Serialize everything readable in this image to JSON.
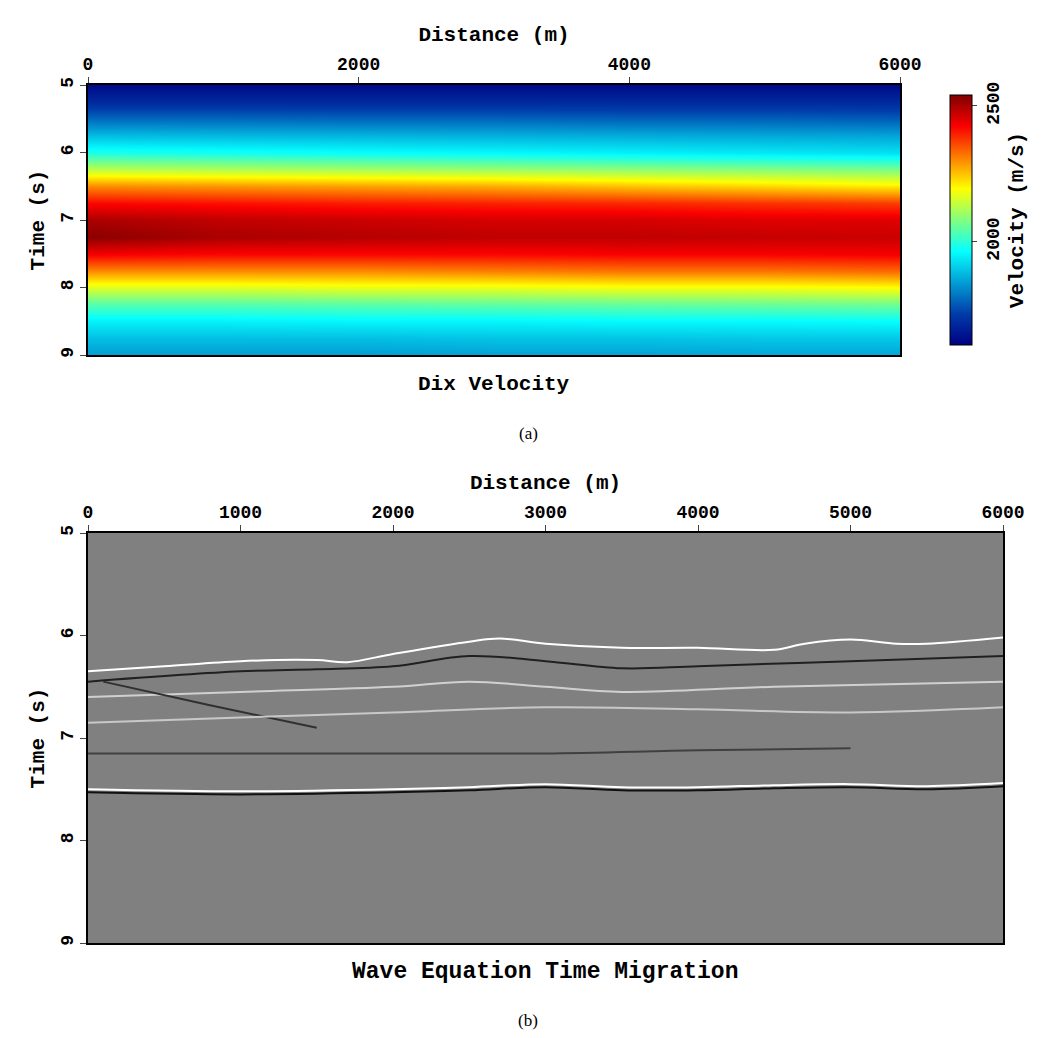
{
  "chart_data": [
    {
      "type": "heatmap",
      "title": "Dix Velocity",
      "label": "(a)",
      "x_label": "Distance (m)",
      "y_label": "Time (s)",
      "x": [
        0,
        1000,
        2000,
        3000,
        4000,
        5000,
        6000
      ],
      "y": [
        5.0,
        5.25,
        5.5,
        5.75,
        6.0,
        6.25,
        6.5,
        6.75,
        7.0,
        7.25,
        7.5,
        7.75,
        8.0,
        8.25,
        8.5,
        8.75,
        9.0
      ],
      "cells": [
        [
          1640,
          1640,
          1640,
          1640,
          1640,
          1640,
          1640
        ],
        [
          1700,
          1700,
          1700,
          1700,
          1700,
          1700,
          1700
        ],
        [
          1790,
          1790,
          1785,
          1785,
          1780,
          1780,
          1775
        ],
        [
          1890,
          1885,
          1880,
          1875,
          1870,
          1865,
          1860
        ],
        [
          1990,
          1980,
          1970,
          1960,
          1950,
          1940,
          1930
        ],
        [
          2130,
          2120,
          2110,
          2100,
          2090,
          2080,
          2070
        ],
        [
          2300,
          2290,
          2280,
          2270,
          2250,
          2230,
          2210
        ],
        [
          2420,
          2410,
          2400,
          2395,
          2390,
          2380,
          2370
        ],
        [
          2500,
          2480,
          2470,
          2460,
          2460,
          2450,
          2450
        ],
        [
          2530,
          2500,
          2490,
          2480,
          2480,
          2475,
          2470
        ],
        [
          2430,
          2420,
          2420,
          2420,
          2425,
          2425,
          2430
        ],
        [
          2300,
          2300,
          2300,
          2310,
          2320,
          2320,
          2330
        ],
        [
          2160,
          2160,
          2170,
          2170,
          2180,
          2180,
          2190
        ],
        [
          2040,
          2040,
          2045,
          2050,
          2055,
          2060,
          2065
        ],
        [
          1950,
          1950,
          1955,
          1955,
          1960,
          1960,
          1965
        ],
        [
          1890,
          1890,
          1890,
          1895,
          1895,
          1900,
          1900
        ],
        [
          1850,
          1850,
          1850,
          1855,
          1855,
          1860,
          1860
        ]
      ],
      "xlim": [
        0,
        6000
      ],
      "xticks": [
        0,
        2000,
        4000,
        6000
      ],
      "ylim": [
        9,
        5
      ],
      "yticks": [
        5,
        6,
        7,
        8,
        9
      ],
      "grid": false,
      "colorbar": {
        "title": "Velocity (m/s)",
        "range": [
          1620,
          2540
        ],
        "ticks": [
          2000,
          2500
        ]
      }
    },
    {
      "type": "line",
      "title": "Wave Equation Time Migration",
      "label": "(b)",
      "x_label": "Distance (m)",
      "y_label": "Time (s)",
      "xlim": [
        0,
        6000
      ],
      "xticks": [
        0,
        1000,
        2000,
        3000,
        4000,
        5000,
        6000
      ],
      "ylim": [
        9,
        5
      ],
      "yticks": [
        5,
        6,
        7,
        8,
        9
      ],
      "grid": false,
      "series": [
        {
          "color": "#ffffff",
          "x": [
            0,
            500,
            1000,
            1500,
            1700,
            2000,
            2500,
            2700,
            3000,
            3500,
            4000,
            4500,
            4700,
            5000,
            5300,
            5500,
            6000
          ],
          "values": [
            6.35,
            6.3,
            6.25,
            6.24,
            6.26,
            6.18,
            6.06,
            6.03,
            6.08,
            6.12,
            6.12,
            6.14,
            6.08,
            6.04,
            6.08,
            6.08,
            6.02
          ]
        },
        {
          "color": "#202020",
          "x": [
            0,
            1000,
            1500,
            2000,
            2500,
            3000,
            3500,
            4000,
            5000,
            6000
          ],
          "values": [
            6.45,
            6.35,
            6.33,
            6.3,
            6.2,
            6.25,
            6.32,
            6.3,
            6.25,
            6.2
          ]
        },
        {
          "color": "#d0d0d0",
          "x": [
            0,
            1000,
            2000,
            2500,
            3000,
            3500,
            4500,
            6000
          ],
          "values": [
            6.6,
            6.55,
            6.5,
            6.45,
            6.5,
            6.55,
            6.5,
            6.45
          ]
        },
        {
          "color": "#303030",
          "x": [
            100,
            800,
            1500
          ],
          "values": [
            6.45,
            6.68,
            6.9
          ]
        },
        {
          "color": "#c8c8c8",
          "x": [
            0,
            1000,
            2000,
            3000,
            4000,
            5000,
            6000
          ],
          "values": [
            6.85,
            6.8,
            6.75,
            6.7,
            6.72,
            6.75,
            6.7
          ]
        },
        {
          "color": "#404040",
          "x": [
            0,
            1000,
            2000,
            3000,
            4000,
            5000
          ],
          "values": [
            7.15,
            7.15,
            7.15,
            7.15,
            7.12,
            7.1
          ]
        },
        {
          "color": "#ffffff",
          "x": [
            0,
            1000,
            2000,
            2500,
            3000,
            3500,
            4000,
            4500,
            5000,
            5500,
            6000
          ],
          "values": [
            7.5,
            7.52,
            7.5,
            7.48,
            7.45,
            7.48,
            7.48,
            7.46,
            7.45,
            7.47,
            7.44
          ]
        },
        {
          "color": "#101010",
          "x": [
            0,
            1000,
            2000,
            2500,
            3000,
            3500,
            4000,
            4500,
            5000,
            5500,
            6000
          ],
          "values": [
            7.53,
            7.55,
            7.53,
            7.51,
            7.48,
            7.51,
            7.51,
            7.49,
            7.48,
            7.5,
            7.47
          ]
        }
      ]
    }
  ]
}
